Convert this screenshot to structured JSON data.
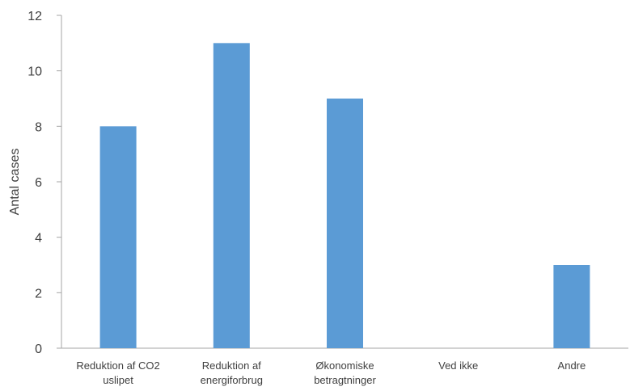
{
  "chart_data": {
    "type": "bar",
    "categories": [
      [
        "Reduktion af CO2",
        "uslipet"
      ],
      [
        "Reduktion af",
        "energiforbrug"
      ],
      [
        "Økonomiske",
        "betragtninger"
      ],
      [
        "Ved ikke"
      ],
      [
        "Andre"
      ]
    ],
    "values": [
      8,
      11,
      9,
      0,
      3
    ],
    "ylabel": "Antal cases",
    "xlabel": "",
    "title": "",
    "ylim": [
      0,
      12
    ],
    "yticks": [
      0,
      2,
      4,
      6,
      8,
      10,
      12
    ],
    "grid": false,
    "legend": "none",
    "bar_color": "#5b9bd5",
    "axis_color": "#a6a6a6"
  }
}
